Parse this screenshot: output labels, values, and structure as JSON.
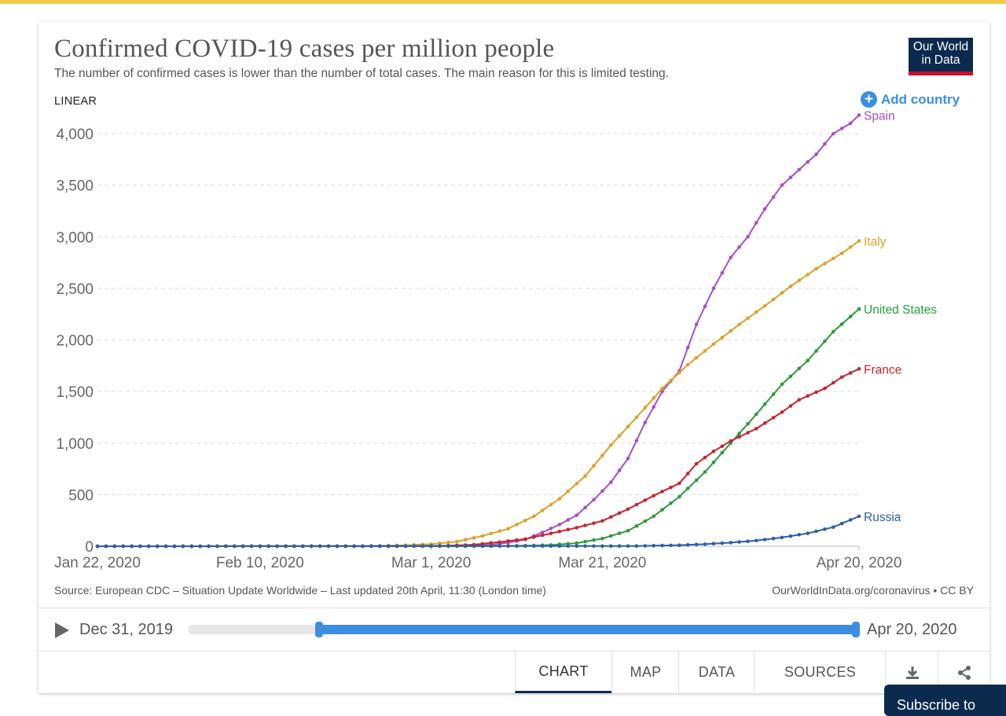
{
  "page": {
    "title": "Confirmed COVID-19 cases per million people",
    "subtitle": "The number of confirmed cases is lower than the number of total cases. The main reason for this is limited testing.",
    "logo_line1": "Our World",
    "logo_line2": "in Data",
    "scale_label": "LINEAR",
    "add_country": "Add country",
    "source": "Source: European CDC – Situation Update Worldwide – Last updated 20th April, 11:30 (London time)",
    "license": "OurWorldInData.org/coronavirus • CC BY",
    "timeline": {
      "start_label": "Dec 31, 2019",
      "end_label": "Apr 20, 2020"
    },
    "tabs": {
      "chart": "CHART",
      "map": "MAP",
      "data": "DATA",
      "sources": "SOURCES"
    },
    "subscribe": "Subscribe to"
  },
  "chart_data": {
    "type": "line",
    "title": "Confirmed COVID-19 cases per million people",
    "ylim": [
      0,
      4000
    ],
    "yticks": [
      0,
      500,
      1000,
      1500,
      2000,
      2500,
      3000,
      3500,
      4000
    ],
    "ytick_labels": [
      "0",
      "500",
      "1,000",
      "1,500",
      "2,000",
      "2,500",
      "3,000",
      "3,500",
      "4,000"
    ],
    "x_start": "2020-01-22",
    "x_end": "2020-04-20",
    "xtick_dates": [
      "2020-01-22",
      "2020-02-10",
      "2020-03-01",
      "2020-03-21",
      "2020-04-20"
    ],
    "xtick_labels": [
      "Jan 22, 2020",
      "Feb 10, 2020",
      "Mar 1, 2020",
      "Mar 21, 2020",
      "Apr 20, 2020"
    ],
    "grid": true,
    "legend": "end-of-line labels",
    "series": [
      {
        "name": "Spain",
        "color": "#a550c5",
        "points": [
          [
            "2020-01-22",
            0
          ],
          [
            "2020-02-25",
            0
          ],
          [
            "2020-03-01",
            2
          ],
          [
            "2020-03-05",
            6
          ],
          [
            "2020-03-08",
            13
          ],
          [
            "2020-03-10",
            35
          ],
          [
            "2020-03-12",
            65
          ],
          [
            "2020-03-14",
            135
          ],
          [
            "2020-03-16",
            210
          ],
          [
            "2020-03-18",
            300
          ],
          [
            "2020-03-20",
            450
          ],
          [
            "2020-03-22",
            620
          ],
          [
            "2020-03-24",
            850
          ],
          [
            "2020-03-26,",
            1200
          ],
          [
            "2020-03-28",
            1500
          ],
          [
            "2020-03-30",
            1700
          ],
          [
            "2020-04-01",
            2150
          ],
          [
            "2020-04-03",
            2500
          ],
          [
            "2020-04-05",
            2800
          ],
          [
            "2020-04-07",
            3000
          ],
          [
            "2020-04-09",
            3270
          ],
          [
            "2020-04-11",
            3500
          ],
          [
            "2020-04-13",
            3650
          ],
          [
            "2020-04-15",
            3800
          ],
          [
            "2020-04-17",
            4000
          ],
          [
            "2020-04-19",
            4100
          ],
          [
            "2020-04-20",
            4180
          ]
        ]
      },
      {
        "name": "Italy",
        "color": "#d9a32a",
        "points": [
          [
            "2020-01-22",
            0
          ],
          [
            "2020-02-20",
            0
          ],
          [
            "2020-02-24",
            3
          ],
          [
            "2020-02-27",
            10
          ],
          [
            "2020-03-01",
            20
          ],
          [
            "2020-03-04",
            45
          ],
          [
            "2020-03-07",
            100
          ],
          [
            "2020-03-10",
            170
          ],
          [
            "2020-03-13",
            290
          ],
          [
            "2020-03-16",
            460
          ],
          [
            "2020-03-19",
            680
          ],
          [
            "2020-03-22",
            980
          ],
          [
            "2020-03-25",
            1250
          ],
          [
            "2020-03-28",
            1530
          ],
          [
            "2020-03-31",
            1760
          ],
          [
            "2020-04-03",
            1960
          ],
          [
            "2020-04-06",
            2150
          ],
          [
            "2020-04-09",
            2330
          ],
          [
            "2020-04-12",
            2520
          ],
          [
            "2020-04-15",
            2690
          ],
          [
            "2020-04-18",
            2840
          ],
          [
            "2020-04-20",
            2960
          ]
        ]
      },
      {
        "name": "United States",
        "color": "#2e9a3e",
        "points": [
          [
            "2020-01-22",
            0
          ],
          [
            "2020-03-08",
            1
          ],
          [
            "2020-03-12",
            5
          ],
          [
            "2020-03-15",
            12
          ],
          [
            "2020-03-18",
            30
          ],
          [
            "2020-03-21",
            75
          ],
          [
            "2020-03-24",
            150
          ],
          [
            "2020-03-27",
            290
          ],
          [
            "2020-03-30",
            480
          ],
          [
            "2020-04-02",
            720
          ],
          [
            "2020-04-05",
            1000
          ],
          [
            "2020-04-08",
            1280
          ],
          [
            "2020-04-11",
            1570
          ],
          [
            "2020-04-14",
            1800
          ],
          [
            "2020-04-17",
            2080
          ],
          [
            "2020-04-20",
            2300
          ]
        ]
      },
      {
        "name": "France",
        "color": "#c4262e",
        "points": [
          [
            "2020-01-22",
            0
          ],
          [
            "2020-02-28",
            1
          ],
          [
            "2020-03-03",
            5
          ],
          [
            "2020-03-06",
            15
          ],
          [
            "2020-03-09",
            40
          ],
          [
            "2020-03-12",
            70
          ],
          [
            "2020-03-15",
            125
          ],
          [
            "2020-03-18",
            180
          ],
          [
            "2020-03-21",
            245
          ],
          [
            "2020-03-24",
            360
          ],
          [
            "2020-03-27",
            490
          ],
          [
            "2020-03-30",
            610
          ],
          [
            "2020-04-01",
            800
          ],
          [
            "2020-04-03",
            920
          ],
          [
            "2020-04-05",
            1020
          ],
          [
            "2020-04-08",
            1140
          ],
          [
            "2020-04-11",
            1300
          ],
          [
            "2020-04-13",
            1420
          ],
          [
            "2020-04-16",
            1530
          ],
          [
            "2020-04-18",
            1640
          ],
          [
            "2020-04-20",
            1720
          ]
        ]
      },
      {
        "name": "Russia",
        "color": "#2e5ea8",
        "points": [
          [
            "2020-01-22",
            0
          ],
          [
            "2020-03-25",
            2
          ],
          [
            "2020-03-30",
            10
          ],
          [
            "2020-04-02",
            20
          ],
          [
            "2020-04-05",
            35
          ],
          [
            "2020-04-08",
            55
          ],
          [
            "2020-04-11",
            85
          ],
          [
            "2020-04-14",
            125
          ],
          [
            "2020-04-17",
            185
          ],
          [
            "2020-04-20",
            290
          ]
        ]
      }
    ]
  }
}
